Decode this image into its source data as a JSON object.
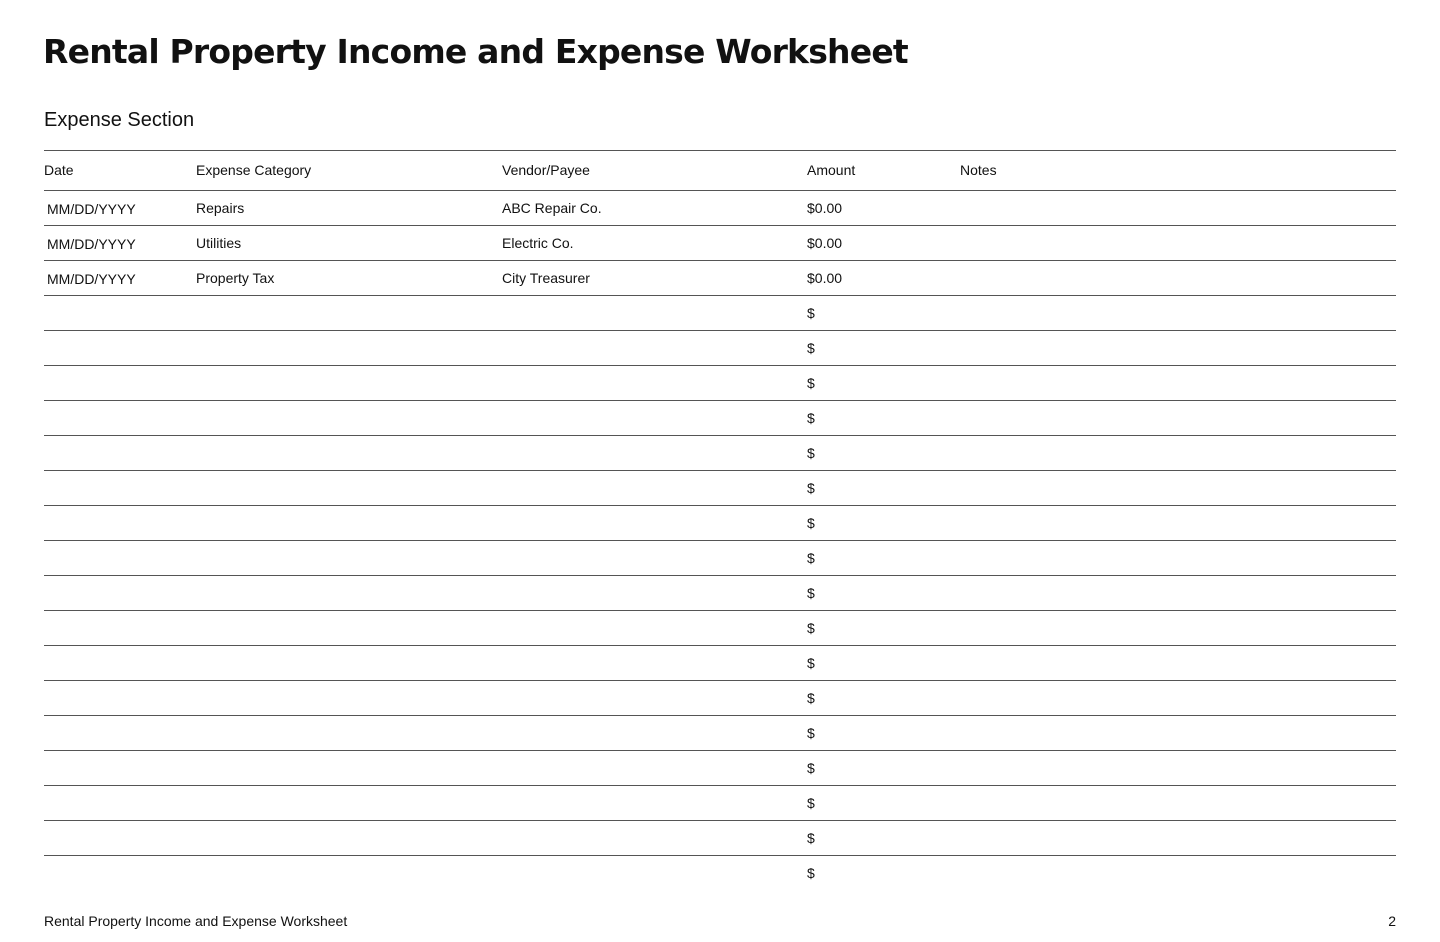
{
  "title": "Rental Property Income and Expense Worksheet",
  "section_title": "Expense Section",
  "table": {
    "headers": [
      "Date",
      "Expense Category",
      "Vendor/Payee",
      "Amount",
      "Notes"
    ],
    "rows": [
      [
        "MM/DD/YYYY",
        "Repairs",
        "ABC Repair Co.",
        "$0.00",
        ""
      ],
      [
        "MM/DD/YYYY",
        "Utilities",
        "Electric Co.",
        "$0.00",
        ""
      ],
      [
        "MM/DD/YYYY",
        "Property Tax",
        "City Treasurer",
        "$0.00",
        ""
      ],
      [
        "",
        "",
        "",
        "$",
        ""
      ],
      [
        "",
        "",
        "",
        "$",
        ""
      ],
      [
        "",
        "",
        "",
        "$",
        ""
      ],
      [
        "",
        "",
        "",
        "$",
        ""
      ],
      [
        "",
        "",
        "",
        "$",
        ""
      ],
      [
        "",
        "",
        "",
        "$",
        ""
      ],
      [
        "",
        "",
        "",
        "$",
        ""
      ],
      [
        "",
        "",
        "",
        "$",
        ""
      ],
      [
        "",
        "",
        "",
        "$",
        ""
      ],
      [
        "",
        "",
        "",
        "$",
        ""
      ],
      [
        "",
        "",
        "",
        "$",
        ""
      ],
      [
        "",
        "",
        "",
        "$",
        ""
      ],
      [
        "",
        "",
        "",
        "$",
        ""
      ],
      [
        "",
        "",
        "",
        "$",
        ""
      ],
      [
        "",
        "",
        "",
        "$",
        ""
      ],
      [
        "",
        "",
        "",
        "$",
        ""
      ],
      [
        "",
        "",
        "",
        "$",
        ""
      ]
    ]
  },
  "footer": {
    "text": "Rental Property Income and Expense Worksheet",
    "page": "2"
  }
}
